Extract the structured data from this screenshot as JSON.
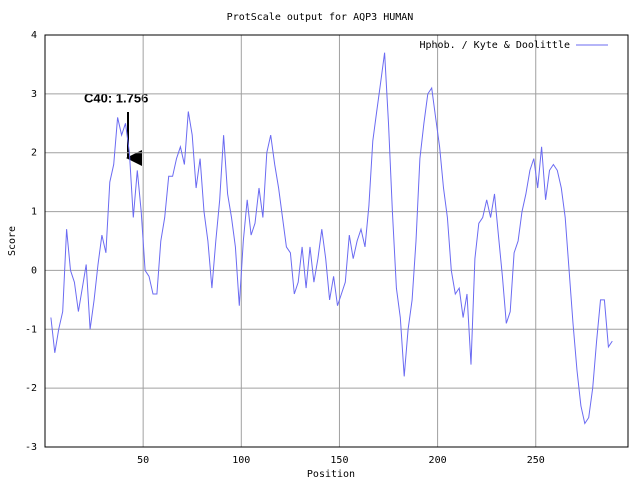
{
  "chart_data": {
    "type": "line",
    "title": "ProtScale output for AQP3 HUMAN",
    "xlabel": "Position",
    "ylabel": "Score",
    "annotation": "C40: 1.756",
    "xlim": [
      0,
      297
    ],
    "ylim": [
      -3,
      4
    ],
    "xticks": [
      50,
      100,
      150,
      200,
      250
    ],
    "yticks": [
      -3,
      -2,
      -1,
      0,
      1,
      2,
      3,
      4
    ],
    "grid": true,
    "legend": "upper right",
    "x": [
      3,
      5,
      7,
      9,
      11,
      13,
      15,
      17,
      19,
      21,
      23,
      25,
      27,
      29,
      31,
      33,
      35,
      37,
      39,
      41,
      43,
      45,
      47,
      49,
      51,
      53,
      55,
      57,
      59,
      61,
      63,
      65,
      67,
      69,
      71,
      73,
      75,
      77,
      79,
      81,
      83,
      85,
      87,
      89,
      91,
      93,
      95,
      97,
      99,
      101,
      103,
      105,
      107,
      109,
      111,
      113,
      115,
      117,
      119,
      121,
      123,
      125,
      127,
      129,
      131,
      133,
      135,
      137,
      139,
      141,
      143,
      145,
      147,
      149,
      151,
      153,
      155,
      157,
      159,
      161,
      163,
      165,
      167,
      169,
      171,
      173,
      175,
      177,
      179,
      181,
      183,
      185,
      187,
      189,
      191,
      193,
      195,
      197,
      199,
      201,
      203,
      205,
      207,
      209,
      211,
      213,
      215,
      217,
      219,
      221,
      223,
      225,
      227,
      229,
      231,
      233,
      235,
      237,
      239,
      241,
      243,
      245,
      247,
      249,
      251,
      253,
      255,
      257,
      259,
      261,
      263,
      265,
      267,
      269,
      271,
      273,
      275,
      277,
      279,
      281,
      283,
      285,
      287,
      289
    ],
    "series": [
      {
        "name": "Hphob. / Kyte & Doolittle",
        "color": "#6b6bf2",
        "values": [
          -0.8,
          -1.4,
          -1.0,
          -0.7,
          0.7,
          0.0,
          -0.2,
          -0.7,
          -0.3,
          0.1,
          -1.0,
          -0.5,
          0.1,
          0.6,
          0.3,
          1.5,
          1.8,
          2.6,
          2.3,
          2.5,
          2.0,
          0.9,
          1.7,
          1.0,
          0.0,
          -0.1,
          -0.4,
          -0.4,
          0.5,
          0.9,
          1.6,
          1.6,
          1.9,
          2.1,
          1.8,
          2.7,
          2.3,
          1.4,
          1.9,
          1.0,
          0.5,
          -0.3,
          0.5,
          1.2,
          2.3,
          1.3,
          0.9,
          0.4,
          -0.6,
          0.5,
          1.2,
          0.6,
          0.8,
          1.4,
          0.9,
          2.0,
          2.3,
          1.8,
          1.4,
          0.9,
          0.4,
          0.3,
          -0.4,
          -0.2,
          0.4,
          -0.3,
          0.4,
          -0.2,
          0.2,
          0.7,
          0.2,
          -0.5,
          -0.1,
          -0.6,
          -0.4,
          -0.2,
          0.6,
          0.2,
          0.5,
          0.7,
          0.4,
          1.1,
          2.2,
          2.7,
          3.2,
          3.7,
          2.5,
          1.0,
          -0.3,
          -0.8,
          -1.8,
          -1.0,
          -0.5,
          0.5,
          1.9,
          2.5,
          3.0,
          3.1,
          2.6,
          2.1,
          1.4,
          0.9,
          0.0,
          -0.4,
          -0.3,
          -0.8,
          -0.4,
          -1.6,
          0.2,
          0.8,
          0.9,
          1.2,
          0.9,
          1.3,
          0.6,
          -0.1,
          -0.9,
          -0.7,
          0.3,
          0.5,
          1.0,
          1.3,
          1.7,
          1.9,
          1.4,
          2.1,
          1.2,
          1.7,
          1.8,
          1.7,
          1.4,
          0.9,
          0.0,
          -0.9,
          -1.7,
          -2.3,
          -2.6,
          -2.5,
          -2.0,
          -1.2,
          -0.5,
          -0.5,
          -1.3,
          -1.2
        ]
      }
    ]
  }
}
